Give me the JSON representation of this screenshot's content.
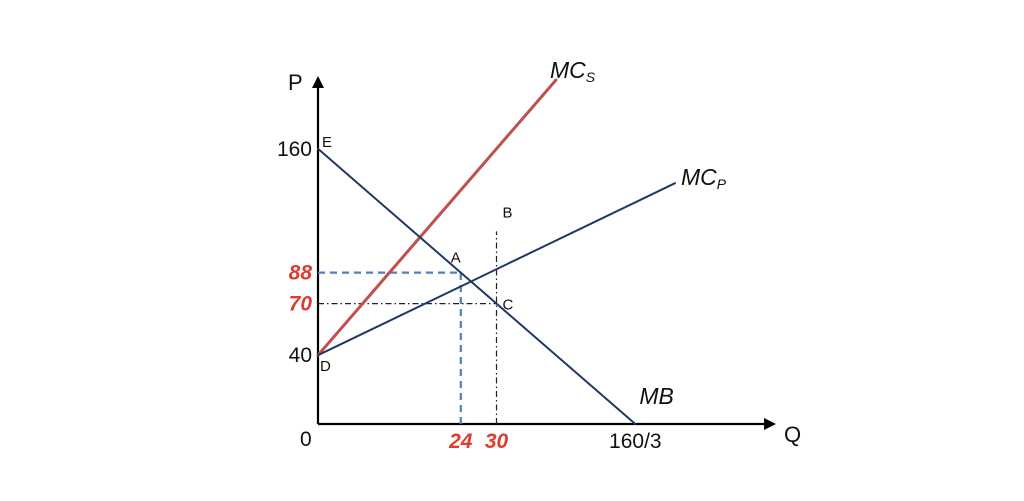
{
  "axes": {
    "y_label": "P",
    "x_label": "Q",
    "origin_label": "0"
  },
  "y_ticks": [
    {
      "value": 160,
      "label": "160",
      "highlight": false
    },
    {
      "value": 88,
      "label": "88",
      "highlight": true
    },
    {
      "value": 70,
      "label": "70",
      "highlight": true
    },
    {
      "value": 40,
      "label": "40",
      "highlight": false
    }
  ],
  "x_ticks": [
    {
      "value": 24,
      "label": "24",
      "highlight": true
    },
    {
      "value": 30,
      "label": "30",
      "highlight": true
    },
    {
      "value": 53.33,
      "label": "160/3",
      "highlight": false
    }
  ],
  "curves": [
    {
      "id": "mcs",
      "main": "MC",
      "sub": "S",
      "color": "#c0504d",
      "points": [
        [
          0,
          40
        ],
        [
          40,
          200
        ]
      ]
    },
    {
      "id": "mcp",
      "main": "MC",
      "sub": "P",
      "color": "#1f3864",
      "points": [
        [
          0,
          40
        ],
        [
          60,
          140
        ]
      ]
    },
    {
      "id": "mb",
      "main": "MB",
      "sub": "",
      "color": "#1f3864",
      "points": [
        [
          0,
          160
        ],
        [
          53.33,
          0
        ]
      ]
    }
  ],
  "points": [
    {
      "label": "E",
      "x": 0,
      "y": 160
    },
    {
      "label": "A",
      "x": 24,
      "y": 88
    },
    {
      "label": "B",
      "x": 30,
      "y": 112
    },
    {
      "label": "C",
      "x": 30,
      "y": 70
    },
    {
      "label": "D",
      "x": 0,
      "y": 40
    }
  ],
  "guides": [
    {
      "id": "blue-horizontal",
      "from": [
        0,
        88
      ],
      "to": [
        24,
        88
      ],
      "style": "dashed",
      "color": "#4f81bd"
    },
    {
      "id": "blue-vertical",
      "from": [
        24,
        0
      ],
      "to": [
        24,
        88
      ],
      "style": "dashed",
      "color": "#4f81bd"
    },
    {
      "id": "black-horizontal",
      "from": [
        0,
        70
      ],
      "to": [
        30,
        70
      ],
      "style": "dashdot",
      "color": "#222222"
    },
    {
      "id": "black-vertical",
      "from": [
        30,
        0
      ],
      "to": [
        30,
        112
      ],
      "style": "dashdot",
      "color": "#222222"
    }
  ],
  "colors": {
    "highlight_text": "#e03c2e",
    "axis": "#000000"
  }
}
